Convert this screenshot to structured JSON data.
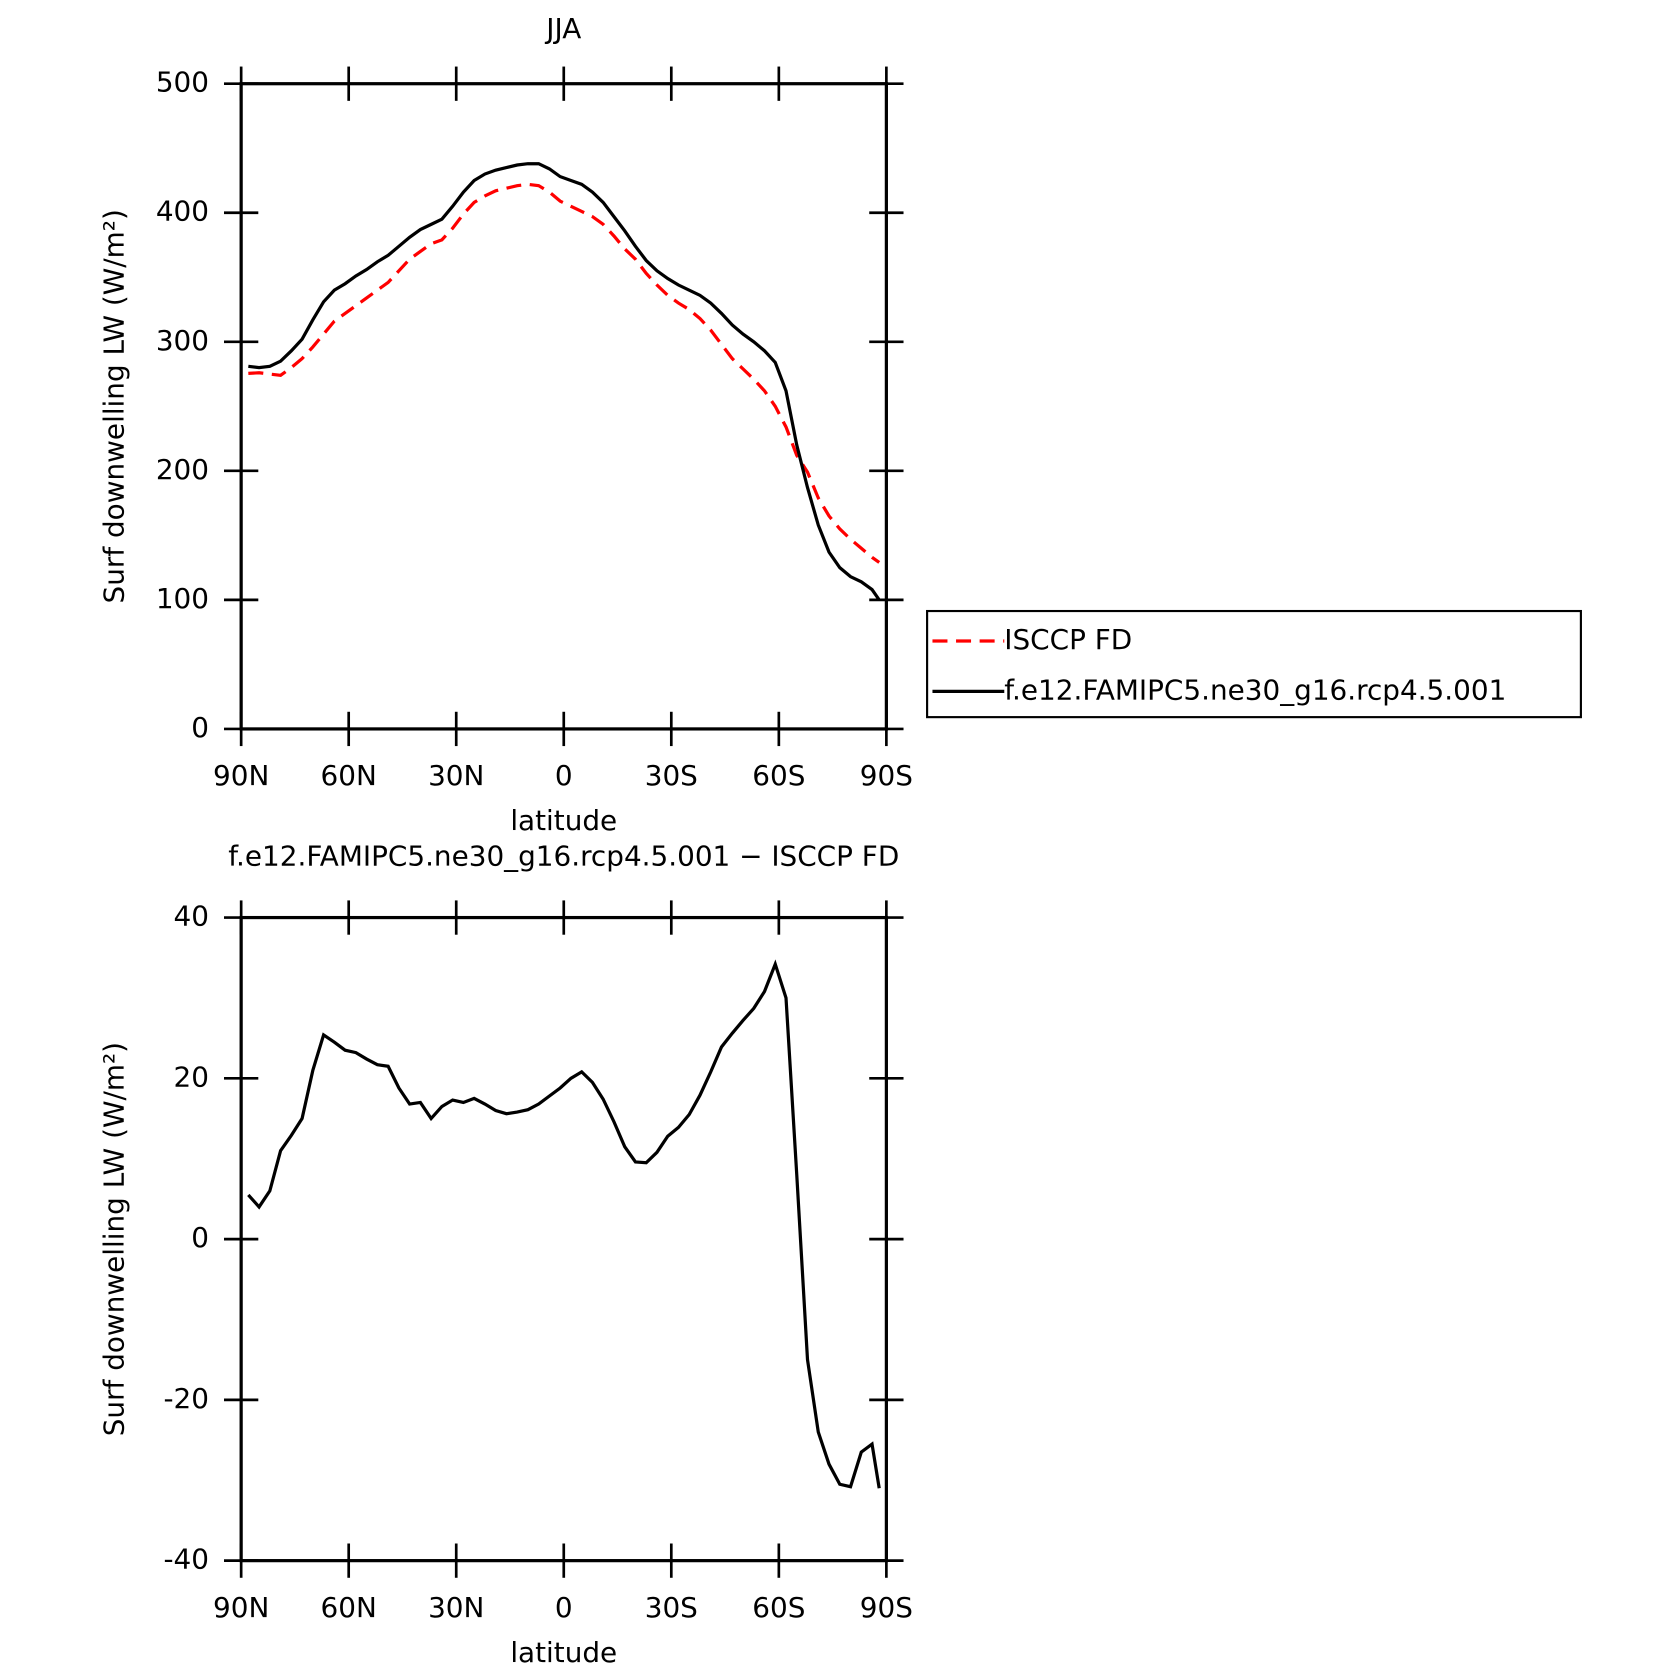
{
  "chart_data": [
    {
      "type": "line",
      "title": "JJA",
      "xlabel": "latitude",
      "ylabel": "Surf downwelling LW (W/m²)",
      "x": [
        88,
        85,
        82,
        79,
        76,
        73,
        70,
        67,
        64,
        61,
        58,
        55,
        52,
        49,
        46,
        43,
        40,
        37,
        34,
        31,
        28,
        25,
        22,
        19,
        16,
        13,
        10,
        7,
        4,
        1,
        -2,
        -5,
        -8,
        -11,
        -14,
        -17,
        -20,
        -23,
        -26,
        -29,
        -32,
        -35,
        -38,
        -41,
        -44,
        -47,
        -50,
        -53,
        -56,
        -59,
        -62,
        -65,
        -68,
        -71,
        -74,
        -77,
        -80,
        -83,
        -86,
        -88
      ],
      "series": [
        {
          "name": "ISCCP FD",
          "color": "#ff0000",
          "linestyle": "dashed",
          "values": [
            275.5,
            276,
            275,
            274,
            280,
            287,
            296,
            306,
            316,
            322,
            328,
            334,
            340,
            346,
            355,
            364,
            370,
            376,
            379,
            388,
            399,
            408,
            413,
            417,
            419,
            421,
            422,
            421,
            416,
            409,
            405,
            401,
            397,
            391,
            382,
            372,
            364,
            353,
            344,
            336,
            330,
            325,
            318,
            309,
            298,
            287,
            279,
            271,
            262,
            250,
            234,
            212,
            199,
            179,
            165,
            155,
            147,
            140,
            133,
            129
          ]
        },
        {
          "name": "f.e12.FAMIPC5.ne30_g16.rcp4.5.001",
          "color": "#000000",
          "linestyle": "solid",
          "values": [
            281,
            280,
            281,
            285,
            293,
            302,
            317,
            331,
            340,
            345,
            351,
            356,
            362,
            367,
            374,
            381,
            387,
            391,
            395,
            405,
            416,
            425,
            430,
            433,
            435,
            437,
            438,
            438,
            434,
            428,
            425,
            422,
            416,
            408,
            397,
            386,
            374,
            363,
            355,
            349,
            344,
            340,
            336,
            330,
            322,
            313,
            306,
            300,
            293,
            284,
            262,
            220,
            187,
            158,
            137,
            125,
            118,
            114,
            108,
            100
          ]
        }
      ],
      "xlim": [
        90,
        -90
      ],
      "xticks": [
        {
          "value": 90,
          "label": "90N"
        },
        {
          "value": 60,
          "label": "60N"
        },
        {
          "value": 30,
          "label": "30N"
        },
        0,
        {
          "value": -30,
          "label": "30S"
        },
        {
          "value": -60,
          "label": "60S"
        },
        {
          "value": -90,
          "label": "90S"
        }
      ],
      "ylim": [
        0,
        500
      ],
      "yticks": [
        0,
        100,
        200,
        300,
        400,
        500
      ],
      "legend": "right"
    },
    {
      "type": "line",
      "title": "f.e12.FAMIPC5.ne30_g16.rcp4.5.001 − ISCCP FD",
      "xlabel": "latitude",
      "ylabel": "Surf downwelling LW (W/m²)",
      "x": [
        88,
        85,
        82,
        79,
        76,
        73,
        70,
        67,
        64,
        61,
        58,
        55,
        52,
        49,
        46,
        43,
        40,
        37,
        34,
        31,
        28,
        25,
        22,
        19,
        16,
        13,
        10,
        7,
        4,
        1,
        -2,
        -5,
        -8,
        -11,
        -14,
        -17,
        -20,
        -23,
        -26,
        -29,
        -32,
        -35,
        -38,
        -41,
        -44,
        -47,
        -50,
        -53,
        -56,
        -59,
        -62,
        -65,
        -68,
        -71,
        -74,
        -77,
        -80,
        -83,
        -86,
        -88
      ],
      "series": [
        {
          "color": "#000000",
          "linestyle": "solid",
          "values": [
            5.5,
            4,
            6,
            11,
            12.9,
            15,
            21,
            25.4,
            24.5,
            23.5,
            23.2,
            22.4,
            21.7,
            21.5,
            18.8,
            16.8,
            17,
            15,
            16.5,
            17.3,
            17,
            17.5,
            16.8,
            16,
            15.6,
            15.8,
            16.1,
            16.8,
            17.8,
            18.8,
            20,
            20.8,
            19.5,
            17.4,
            14.6,
            11.5,
            9.6,
            9.5,
            10.8,
            12.8,
            13.9,
            15.5,
            17.9,
            20.8,
            23.9,
            25.6,
            27.2,
            28.7,
            30.8,
            34.2,
            30,
            8,
            -15,
            -24,
            -28,
            -30.5,
            -30.8,
            -26.5,
            -25.5,
            -31
          ]
        }
      ],
      "xlim": [
        90,
        -90
      ],
      "xticks": [
        {
          "value": 90,
          "label": "90N"
        },
        {
          "value": 60,
          "label": "60N"
        },
        {
          "value": 30,
          "label": "30N"
        },
        0,
        {
          "value": -30,
          "label": "30S"
        },
        {
          "value": -60,
          "label": "60S"
        },
        {
          "value": -90,
          "label": "90S"
        }
      ],
      "ylim": [
        -40,
        40
      ],
      "yticks": [
        -40,
        -20,
        0,
        20,
        40
      ]
    }
  ]
}
